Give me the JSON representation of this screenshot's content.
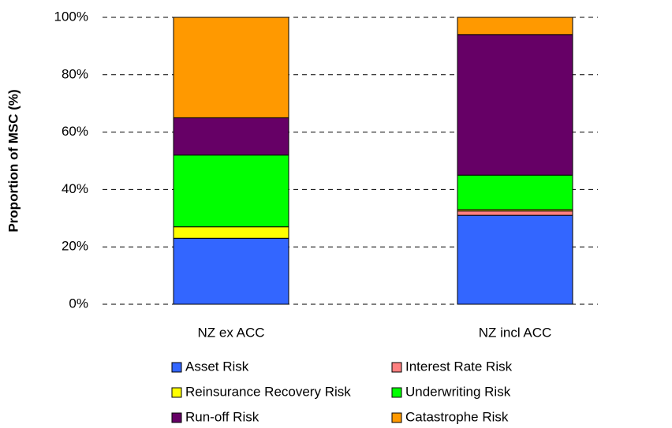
{
  "chart_data": {
    "type": "stacked_bar",
    "y_label": "Proportion of MSC (%)",
    "categories": [
      "NZ ex ACC",
      "NZ incl ACC"
    ],
    "series": [
      {
        "name": "Asset Risk",
        "color": "#3366ff",
        "values": [
          23,
          31
        ]
      },
      {
        "name": "Interest Rate Risk",
        "color": "#ff8080",
        "values": [
          0,
          1.5
        ]
      },
      {
        "name": "Reinsurance Recovery Risk",
        "color": "#ffff00",
        "values": [
          4,
          0.5
        ]
      },
      {
        "name": "Underwriting Risk",
        "color": "#00ff00",
        "values": [
          25,
          12
        ]
      },
      {
        "name": "Run-off Risk",
        "color": "#660066",
        "values": [
          13,
          49
        ]
      },
      {
        "name": "Catastrophe Risk",
        "color": "#ff9900",
        "values": [
          35,
          6
        ]
      }
    ],
    "ylim": [
      0,
      100
    ],
    "yticks": [
      {
        "value": 0,
        "label": "0%"
      },
      {
        "value": 20,
        "label": "20%"
      },
      {
        "value": 40,
        "label": "40%"
      },
      {
        "value": 60,
        "label": "60%"
      },
      {
        "value": 80,
        "label": "80%"
      },
      {
        "value": 100,
        "label": "100%"
      }
    ],
    "grid": true,
    "legend": "bottom"
  }
}
